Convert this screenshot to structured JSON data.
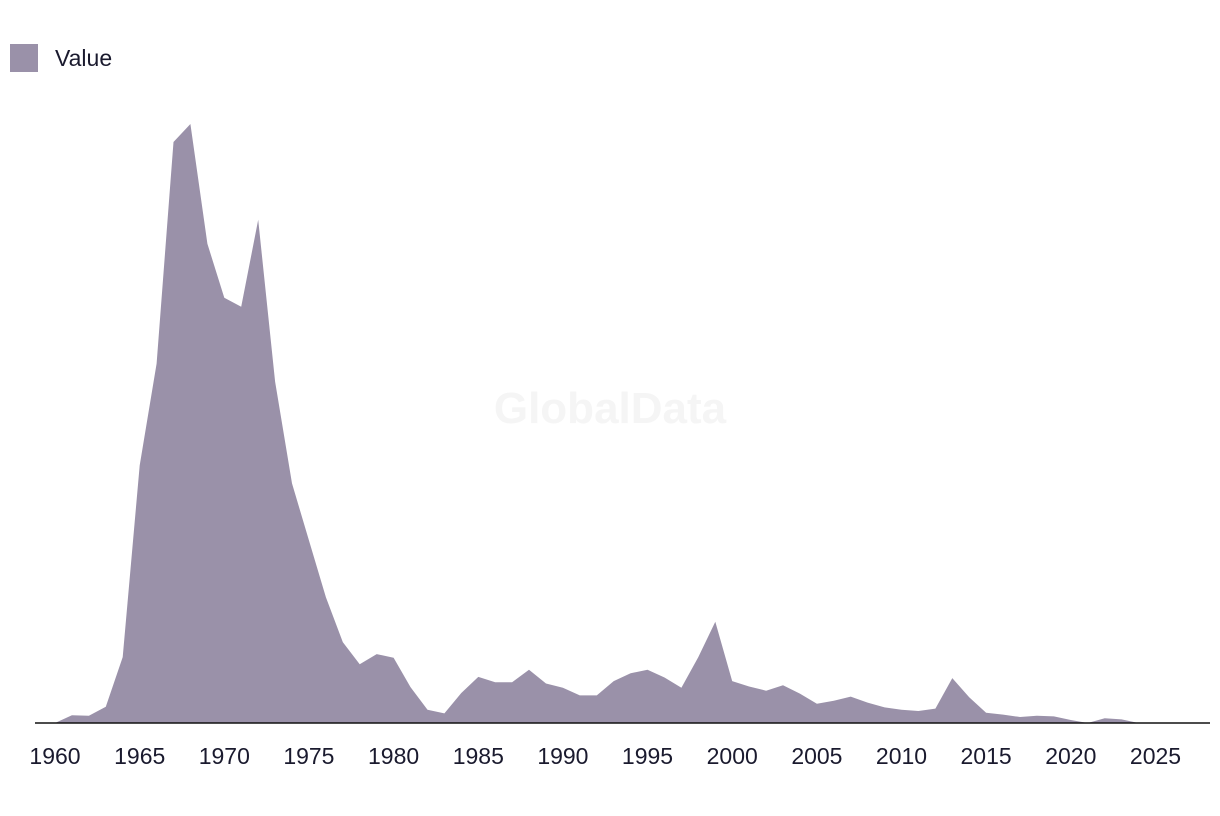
{
  "watermark": "GlobalData",
  "colors": {
    "area": "#9a91a9",
    "axis": "#111111",
    "text": "#1a1a2e"
  },
  "chart_data": {
    "type": "area",
    "title": "",
    "xlabel": "",
    "ylabel": "",
    "legend": {
      "position": "top-left",
      "entries": [
        "Value"
      ]
    },
    "grid": false,
    "xlim": [
      1960,
      2029
    ],
    "ylim": [
      0,
      100
    ],
    "x_ticks": [
      1960,
      1965,
      1970,
      1975,
      1980,
      1985,
      1990,
      1995,
      2000,
      2005,
      2010,
      2015,
      2020,
      2025
    ],
    "x": [
      1960,
      1961,
      1962,
      1963,
      1964,
      1965,
      1966,
      1967,
      1968,
      1969,
      1970,
      1971,
      1972,
      1973,
      1974,
      1975,
      1976,
      1977,
      1978,
      1979,
      1980,
      1981,
      1982,
      1983,
      1984,
      1985,
      1986,
      1987,
      1988,
      1989,
      1990,
      1991,
      1992,
      1993,
      1994,
      1995,
      1996,
      1997,
      1998,
      1999,
      2000,
      2001,
      2002,
      2003,
      2004,
      2005,
      2006,
      2007,
      2008,
      2009,
      2010,
      2011,
      2012,
      2013,
      2014,
      2015,
      2016,
      2017,
      2018,
      2019,
      2020,
      2021,
      2022,
      2023,
      2024,
      2025,
      2026,
      2027
    ],
    "series": [
      {
        "name": "Value",
        "values": [
          0,
          1.3,
          1.2,
          2.7,
          11,
          43,
          60,
          97,
          100,
          80,
          71,
          69.5,
          84,
          57,
          40,
          30.5,
          21,
          13.5,
          9.8,
          11.5,
          10.9,
          6,
          2.2,
          1.6,
          5,
          7.7,
          6.8,
          6.8,
          8.9,
          6.6,
          5.9,
          4.6,
          4.6,
          7,
          8.3,
          8.9,
          7.6,
          5.9,
          11,
          16.9,
          7,
          6.1,
          5.4,
          6.3,
          4.9,
          3.2,
          3.7,
          4.4,
          3.4,
          2.6,
          2.2,
          2,
          2.4,
          7.5,
          4.3,
          1.7,
          1.4,
          1,
          1.2,
          1.1,
          0.5,
          0,
          0.8,
          0.6,
          0,
          0,
          0,
          0
        ]
      }
    ]
  }
}
